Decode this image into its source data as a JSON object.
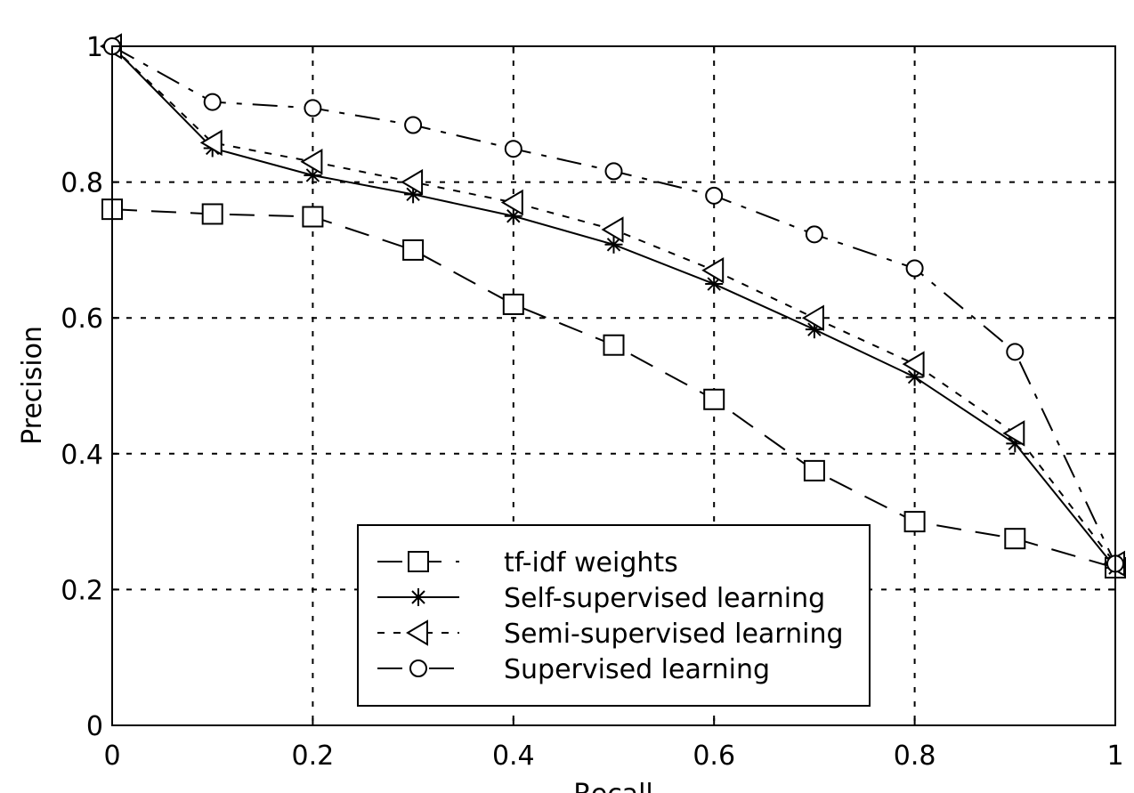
{
  "chart_data": {
    "type": "line",
    "title": "",
    "xlabel": "Recall",
    "ylabel": "Precision",
    "xlim": [
      0,
      1
    ],
    "ylim": [
      0,
      1
    ],
    "x_ticks": [
      0,
      0.2,
      0.4,
      0.6,
      0.8,
      1
    ],
    "x_tick_labels": [
      "0",
      "0.2",
      "0.4",
      "0.6",
      "0.8",
      "1"
    ],
    "y_ticks": [
      0,
      0.2,
      0.4,
      0.6,
      0.8,
      1
    ],
    "y_tick_labels": [
      "0",
      "0.2",
      "0.4",
      "0.6",
      "0.8",
      "1"
    ],
    "grid": true,
    "legend_position": "bottom-center",
    "x": [
      0,
      0.1,
      0.2,
      0.3,
      0.4,
      0.5,
      0.6,
      0.7,
      0.8,
      0.9,
      1.0
    ],
    "series": [
      {
        "name": "tf-idf weights",
        "marker": "square",
        "line_style": "dash",
        "values": [
          0.76,
          0.753,
          0.749,
          0.7,
          0.62,
          0.56,
          0.48,
          0.375,
          0.3,
          0.275,
          0.232
        ]
      },
      {
        "name": "Self-supervised learning",
        "marker": "asterisk",
        "line_style": "solid",
        "values": [
          1.0,
          0.85,
          0.81,
          0.782,
          0.75,
          0.708,
          0.65,
          0.583,
          0.513,
          0.415,
          0.232
        ]
      },
      {
        "name": "Semi-supervised learning",
        "marker": "triangle-left",
        "line_style": "dot",
        "values": [
          1.0,
          0.858,
          0.83,
          0.8,
          0.77,
          0.73,
          0.67,
          0.6,
          0.532,
          0.43,
          0.238
        ]
      },
      {
        "name": "Supervised learning",
        "marker": "circle",
        "line_style": "dashdot",
        "values": [
          1.0,
          0.918,
          0.909,
          0.884,
          0.849,
          0.816,
          0.78,
          0.723,
          0.673,
          0.55,
          0.238
        ]
      }
    ]
  }
}
